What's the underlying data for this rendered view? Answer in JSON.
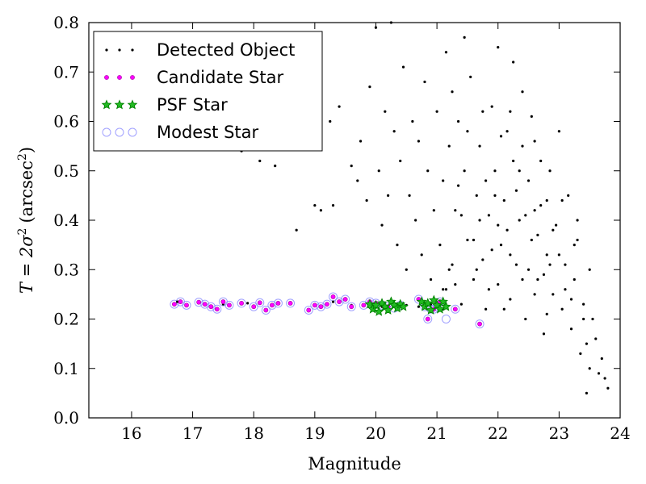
{
  "chart_data": {
    "type": "scatter",
    "title": "",
    "xlabel": "Magnitude",
    "ylabel_prefix": "T = 2σ",
    "ylabel_units": "(arcsec",
    "xlim": [
      15.3,
      24.0
    ],
    "ylim": [
      0.0,
      0.8
    ],
    "x_ticks": [
      16,
      17,
      18,
      19,
      20,
      21,
      22,
      23,
      24
    ],
    "y_ticks": [
      0.0,
      0.1,
      0.2,
      0.3,
      0.4,
      0.5,
      0.6,
      0.7,
      0.8
    ],
    "x_tick_labels": [
      "16",
      "17",
      "18",
      "19",
      "20",
      "21",
      "22",
      "23",
      "24"
    ],
    "y_tick_labels": [
      "0.0",
      "0.1",
      "0.2",
      "0.3",
      "0.4",
      "0.5",
      "0.6",
      "0.7",
      "0.8"
    ],
    "legend_position": "top-left",
    "grid": false,
    "series": [
      {
        "name": "Detected Object",
        "marker": "dot",
        "color": "#000000",
        "points": [
          [
            16.75,
            0.235
          ],
          [
            17.1,
            0.235
          ],
          [
            17.5,
            0.23
          ],
          [
            17.9,
            0.232
          ],
          [
            18.3,
            0.23
          ],
          [
            18.6,
            0.232
          ],
          [
            19.0,
            0.23
          ],
          [
            19.3,
            0.235
          ],
          [
            19.6,
            0.228
          ],
          [
            19.9,
            0.228
          ],
          [
            20.1,
            0.225
          ],
          [
            20.3,
            0.225
          ],
          [
            20.5,
            0.228
          ],
          [
            20.7,
            0.225
          ],
          [
            20.9,
            0.23
          ],
          [
            21.0,
            0.225
          ],
          [
            21.1,
            0.22
          ],
          [
            17.8,
            0.54
          ],
          [
            18.1,
            0.52
          ],
          [
            18.35,
            0.51
          ],
          [
            18.7,
            0.38
          ],
          [
            18.9,
            0.55
          ],
          [
            19.0,
            0.43
          ],
          [
            19.1,
            0.42
          ],
          [
            19.25,
            0.6
          ],
          [
            19.3,
            0.43
          ],
          [
            19.4,
            0.63
          ],
          [
            19.6,
            0.51
          ],
          [
            19.7,
            0.48
          ],
          [
            19.75,
            0.56
          ],
          [
            19.85,
            0.44
          ],
          [
            19.9,
            0.67
          ],
          [
            20.0,
            0.79
          ],
          [
            20.05,
            0.5
          ],
          [
            20.1,
            0.39
          ],
          [
            20.15,
            0.62
          ],
          [
            20.2,
            0.45
          ],
          [
            20.25,
            0.8
          ],
          [
            20.3,
            0.58
          ],
          [
            20.35,
            0.35
          ],
          [
            20.4,
            0.52
          ],
          [
            20.45,
            0.71
          ],
          [
            20.5,
            0.3
          ],
          [
            20.55,
            0.45
          ],
          [
            20.6,
            0.6
          ],
          [
            20.65,
            0.4
          ],
          [
            20.7,
            0.56
          ],
          [
            20.75,
            0.33
          ],
          [
            20.8,
            0.68
          ],
          [
            20.85,
            0.5
          ],
          [
            20.9,
            0.28
          ],
          [
            20.95,
            0.42
          ],
          [
            21.0,
            0.62
          ],
          [
            21.05,
            0.35
          ],
          [
            21.1,
            0.48
          ],
          [
            21.15,
            0.26
          ],
          [
            21.15,
            0.74
          ],
          [
            21.2,
            0.55
          ],
          [
            21.25,
            0.31
          ],
          [
            21.3,
            0.42
          ],
          [
            21.35,
            0.6
          ],
          [
            21.4,
            0.23
          ],
          [
            21.45,
            0.5
          ],
          [
            21.5,
            0.36
          ],
          [
            21.55,
            0.69
          ],
          [
            21.6,
            0.28
          ],
          [
            21.65,
            0.45
          ],
          [
            21.7,
            0.55
          ],
          [
            21.75,
            0.32
          ],
          [
            21.8,
            0.22
          ],
          [
            21.85,
            0.41
          ],
          [
            21.9,
            0.63
          ],
          [
            21.95,
            0.5
          ],
          [
            22.0,
            0.27
          ],
          [
            22.0,
            0.75
          ],
          [
            22.05,
            0.35
          ],
          [
            22.1,
            0.44
          ],
          [
            22.15,
            0.58
          ],
          [
            22.2,
            0.24
          ],
          [
            22.25,
            0.52
          ],
          [
            22.3,
            0.31
          ],
          [
            22.35,
            0.4
          ],
          [
            22.4,
            0.66
          ],
          [
            22.45,
            0.2
          ],
          [
            22.5,
            0.48
          ],
          [
            22.55,
            0.36
          ],
          [
            22.6,
            0.56
          ],
          [
            22.65,
            0.28
          ],
          [
            22.7,
            0.43
          ],
          [
            22.75,
            0.17
          ],
          [
            22.8,
            0.33
          ],
          [
            22.85,
            0.5
          ],
          [
            22.9,
            0.25
          ],
          [
            22.95,
            0.39
          ],
          [
            23.0,
            0.58
          ],
          [
            23.05,
            0.22
          ],
          [
            23.1,
            0.31
          ],
          [
            23.15,
            0.45
          ],
          [
            23.2,
            0.18
          ],
          [
            23.25,
            0.28
          ],
          [
            23.3,
            0.36
          ],
          [
            23.35,
            0.13
          ],
          [
            23.4,
            0.23
          ],
          [
            23.45,
            0.05
          ],
          [
            23.5,
            0.1
          ],
          [
            23.55,
            0.2
          ],
          [
            23.6,
            0.16
          ],
          [
            23.65,
            0.09
          ],
          [
            23.7,
            0.12
          ],
          [
            23.75,
            0.08
          ],
          [
            23.8,
            0.06
          ],
          [
            21.3,
            0.27
          ],
          [
            21.5,
            0.58
          ],
          [
            21.7,
            0.4
          ],
          [
            21.9,
            0.34
          ],
          [
            22.1,
            0.22
          ],
          [
            22.3,
            0.46
          ],
          [
            22.5,
            0.3
          ],
          [
            22.7,
            0.52
          ],
          [
            22.9,
            0.38
          ],
          [
            23.1,
            0.26
          ],
          [
            23.3,
            0.4
          ],
          [
            23.5,
            0.3
          ],
          [
            22.2,
            0.62
          ],
          [
            22.4,
            0.55
          ],
          [
            22.6,
            0.25
          ],
          [
            22.8,
            0.44
          ],
          [
            21.4,
            0.41
          ],
          [
            21.6,
            0.36
          ],
          [
            21.8,
            0.48
          ],
          [
            22.0,
            0.39
          ],
          [
            22.2,
            0.33
          ],
          [
            22.4,
            0.28
          ],
          [
            22.6,
            0.42
          ],
          [
            22.8,
            0.21
          ],
          [
            23.0,
            0.33
          ],
          [
            23.2,
            0.24
          ],
          [
            23.4,
            0.2
          ],
          [
            21.2,
            0.3
          ],
          [
            21.1,
            0.26
          ],
          [
            22.05,
            0.57
          ],
          [
            22.35,
            0.5
          ],
          [
            22.65,
            0.37
          ],
          [
            21.75,
            0.62
          ],
          [
            21.95,
            0.45
          ],
          [
            22.15,
            0.38
          ],
          [
            22.45,
            0.41
          ],
          [
            22.75,
            0.29
          ],
          [
            23.05,
            0.44
          ],
          [
            23.25,
            0.35
          ],
          [
            23.45,
            0.15
          ],
          [
            22.55,
            0.61
          ],
          [
            22.85,
            0.31
          ],
          [
            21.65,
            0.3
          ],
          [
            21.85,
            0.26
          ],
          [
            21.25,
            0.66
          ],
          [
            21.45,
            0.77
          ],
          [
            21.35,
            0.47
          ],
          [
            22.25,
            0.72
          ]
        ]
      },
      {
        "name": "Candidate Star",
        "marker": "circle-small",
        "color": "#ff00ff",
        "points": [
          [
            16.7,
            0.23
          ],
          [
            16.8,
            0.235
          ],
          [
            16.9,
            0.228
          ],
          [
            17.1,
            0.234
          ],
          [
            17.2,
            0.23
          ],
          [
            17.3,
            0.225
          ],
          [
            17.4,
            0.22
          ],
          [
            17.5,
            0.235
          ],
          [
            17.6,
            0.228
          ],
          [
            17.8,
            0.232
          ],
          [
            18.0,
            0.225
          ],
          [
            18.1,
            0.233
          ],
          [
            18.2,
            0.218
          ],
          [
            18.3,
            0.228
          ],
          [
            18.4,
            0.232
          ],
          [
            18.6,
            0.232
          ],
          [
            18.9,
            0.218
          ],
          [
            19.0,
            0.228
          ],
          [
            19.1,
            0.225
          ],
          [
            19.2,
            0.23
          ],
          [
            19.3,
            0.245
          ],
          [
            19.4,
            0.235
          ],
          [
            19.5,
            0.24
          ],
          [
            19.6,
            0.225
          ],
          [
            19.8,
            0.228
          ],
          [
            19.9,
            0.235
          ],
          [
            20.0,
            0.232
          ],
          [
            20.2,
            0.225
          ],
          [
            20.4,
            0.228
          ],
          [
            20.7,
            0.24
          ],
          [
            20.85,
            0.2
          ],
          [
            20.95,
            0.22
          ],
          [
            21.05,
            0.235
          ],
          [
            21.3,
            0.22
          ],
          [
            21.7,
            0.19
          ]
        ]
      },
      {
        "name": "PSF Star",
        "marker": "star",
        "color": "#008000",
        "points": [
          [
            19.9,
            0.23
          ],
          [
            19.95,
            0.22
          ],
          [
            20.0,
            0.228
          ],
          [
            20.05,
            0.215
          ],
          [
            20.1,
            0.232
          ],
          [
            20.15,
            0.225
          ],
          [
            20.2,
            0.218
          ],
          [
            20.25,
            0.235
          ],
          [
            20.3,
            0.228
          ],
          [
            20.35,
            0.222
          ],
          [
            20.4,
            0.23
          ],
          [
            20.45,
            0.225
          ],
          [
            20.75,
            0.235
          ],
          [
            20.8,
            0.225
          ],
          [
            20.85,
            0.232
          ],
          [
            20.9,
            0.218
          ],
          [
            20.95,
            0.238
          ],
          [
            21.0,
            0.228
          ],
          [
            21.05,
            0.22
          ],
          [
            21.1,
            0.235
          ],
          [
            21.15,
            0.225
          ]
        ]
      },
      {
        "name": "Modest Star",
        "marker": "circle-large",
        "color": "#8080ff",
        "points": [
          [
            16.7,
            0.23
          ],
          [
            16.8,
            0.235
          ],
          [
            16.9,
            0.228
          ],
          [
            17.1,
            0.234
          ],
          [
            17.2,
            0.23
          ],
          [
            17.3,
            0.225
          ],
          [
            17.4,
            0.22
          ],
          [
            17.5,
            0.235
          ],
          [
            17.6,
            0.228
          ],
          [
            17.8,
            0.232
          ],
          [
            18.0,
            0.225
          ],
          [
            18.1,
            0.233
          ],
          [
            18.2,
            0.218
          ],
          [
            18.3,
            0.228
          ],
          [
            18.4,
            0.232
          ],
          [
            18.6,
            0.232
          ],
          [
            18.9,
            0.218
          ],
          [
            19.0,
            0.228
          ],
          [
            19.1,
            0.225
          ],
          [
            19.2,
            0.23
          ],
          [
            19.3,
            0.245
          ],
          [
            19.4,
            0.235
          ],
          [
            19.5,
            0.24
          ],
          [
            19.6,
            0.225
          ],
          [
            19.8,
            0.228
          ],
          [
            19.9,
            0.235
          ],
          [
            20.0,
            0.232
          ],
          [
            20.1,
            0.228
          ],
          [
            20.2,
            0.225
          ],
          [
            20.3,
            0.222
          ],
          [
            20.4,
            0.228
          ],
          [
            20.7,
            0.24
          ],
          [
            20.8,
            0.225
          ],
          [
            20.85,
            0.2
          ],
          [
            20.9,
            0.22
          ],
          [
            20.95,
            0.22
          ],
          [
            21.0,
            0.225
          ],
          [
            21.05,
            0.235
          ],
          [
            21.15,
            0.2
          ],
          [
            21.3,
            0.22
          ],
          [
            21.7,
            0.19
          ]
        ]
      }
    ]
  }
}
